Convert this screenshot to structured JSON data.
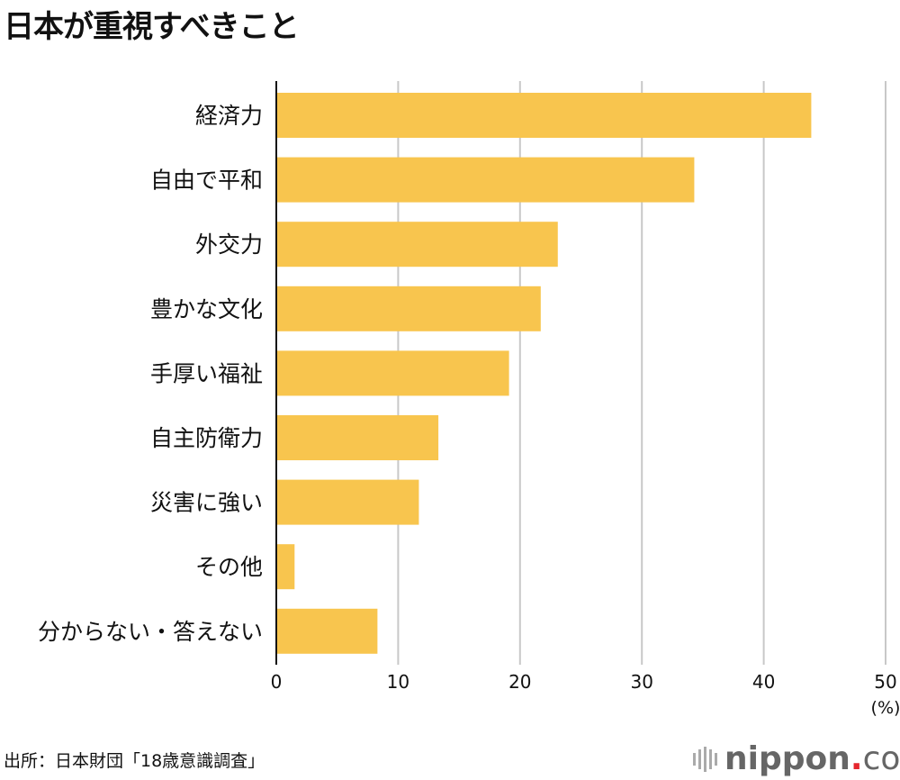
{
  "chart_data": {
    "type": "bar",
    "orientation": "horizontal",
    "title": "日本が重視すべきこと",
    "categories": [
      "経済力",
      "自由で平和",
      "外交力",
      "豊かな文化",
      "手厚い福祉",
      "自主防衛力",
      "災害に強い",
      "その他",
      "分からない・答えない"
    ],
    "values": [
      43.9,
      34.3,
      23.1,
      21.7,
      19.1,
      13.3,
      11.7,
      1.5,
      8.3
    ],
    "xlim": [
      0,
      50
    ],
    "ticks": [
      "0",
      "10",
      "20",
      "30",
      "40",
      "50"
    ],
    "unit_label": "(%)",
    "grid": true,
    "bar_color": "#F8C54E"
  },
  "source": "出所：日本財団「18歳意識調査」",
  "logo": {
    "name": "nippon",
    "dot": ".",
    "suffix": "com"
  }
}
